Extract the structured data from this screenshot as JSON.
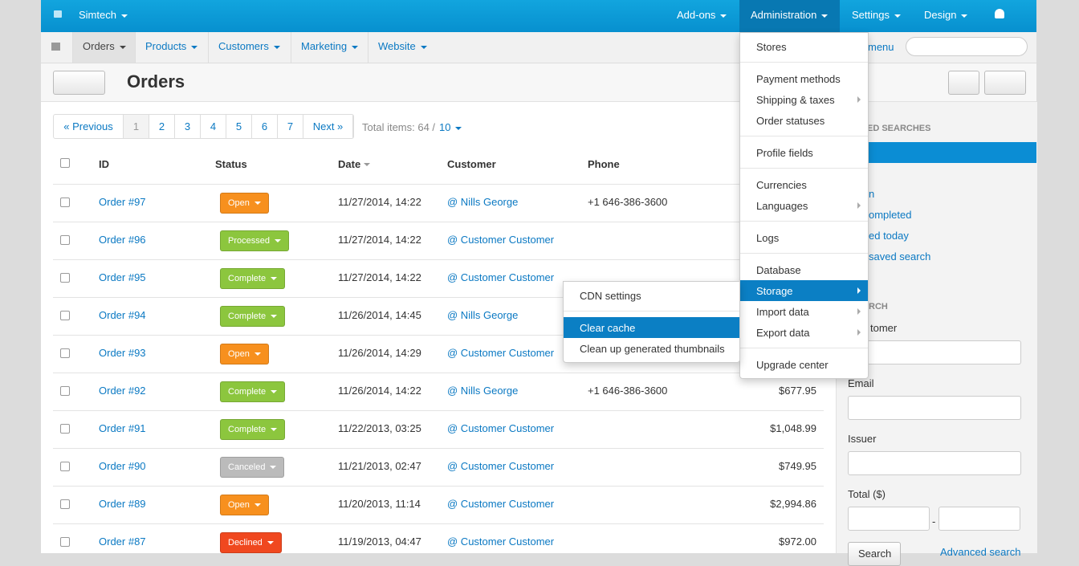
{
  "topbar": {
    "brand": "Simtech",
    "menus": [
      "Add-ons",
      "Administration",
      "Settings",
      "Design"
    ]
  },
  "navbar": {
    "tabs": [
      "Orders",
      "Products",
      "Customers",
      "Marketing",
      "Website"
    ],
    "quick_menu": "menu"
  },
  "page": {
    "title": "Orders"
  },
  "pagination": {
    "previous": "« Previous",
    "pages": [
      "1",
      "2",
      "3",
      "4",
      "5",
      "6",
      "7"
    ],
    "next": "Next »",
    "total_label": "Total items: 64 /",
    "per_page": "10"
  },
  "table": {
    "headers": [
      "ID",
      "Status",
      "Date",
      "Customer",
      "Phone"
    ],
    "rows": [
      {
        "id": "Order #97",
        "status": "Open",
        "date": "11/27/2014, 14:22",
        "customer": "@ Nills George",
        "phone": "+1 646-386-3600"
      },
      {
        "id": "Order #96",
        "status": "Processed",
        "date": "11/27/2014, 14:22",
        "customer": "@ Customer Customer"
      },
      {
        "id": "Order #95",
        "status": "Complete",
        "date": "11/27/2014, 14:22",
        "customer": "@ Customer Customer"
      },
      {
        "id": "Order #94",
        "status": "Complete",
        "date": "11/26/2014, 14:45",
        "customer": "@ Nills George"
      },
      {
        "id": "Order #93",
        "status": "Open",
        "date": "11/26/2014, 14:29",
        "customer": "@ Customer Customer"
      },
      {
        "id": "Order #92",
        "status": "Complete",
        "date": "11/26/2014, 14:22",
        "customer": "@ Nills George",
        "phone": "+1 646-386-3600",
        "total": "$677.95"
      },
      {
        "id": "Order #91",
        "status": "Complete",
        "date": "11/22/2013, 03:25",
        "customer": "@ Customer Customer",
        "total": "$1,048.99"
      },
      {
        "id": "Order #90",
        "status": "Canceled",
        "date": "11/21/2013, 02:47",
        "customer": "@ Customer Customer",
        "total": "$749.95"
      },
      {
        "id": "Order #89",
        "status": "Open",
        "date": "11/20/2013, 11:14",
        "customer": "@ Customer Customer",
        "total": "$2,994.86"
      },
      {
        "id": "Order #87",
        "status": "Declined",
        "date": "11/19/2013, 04:47",
        "customer": "@ Customer Customer",
        "total": "$972.00"
      }
    ]
  },
  "admin_menu": {
    "groups": [
      [
        "Stores"
      ],
      [
        "Payment methods",
        "Shipping & taxes",
        "Order statuses"
      ],
      [
        "Profile fields"
      ],
      [
        "Currencies",
        "Languages"
      ],
      [
        "Logs"
      ],
      [
        "Database",
        "Storage",
        "Import data",
        "Export data"
      ],
      [
        "Upgrade center"
      ]
    ]
  },
  "storage_submenu": {
    "groups": [
      [
        "CDN settings"
      ],
      [
        "Clear cache",
        "Clean up generated thumbnails"
      ]
    ]
  },
  "sidebar": {
    "saved_searches_heading": "ED SEARCHES",
    "saved_searches": [
      "n",
      "ompleted",
      "ed today",
      "saved search"
    ],
    "search_heading": "RCH",
    "fields": [
      "tomer",
      "Email",
      "Issuer",
      "Total ($)"
    ],
    "range_separator": "-",
    "search_button": "Search",
    "advanced_search": "Advanced search"
  }
}
